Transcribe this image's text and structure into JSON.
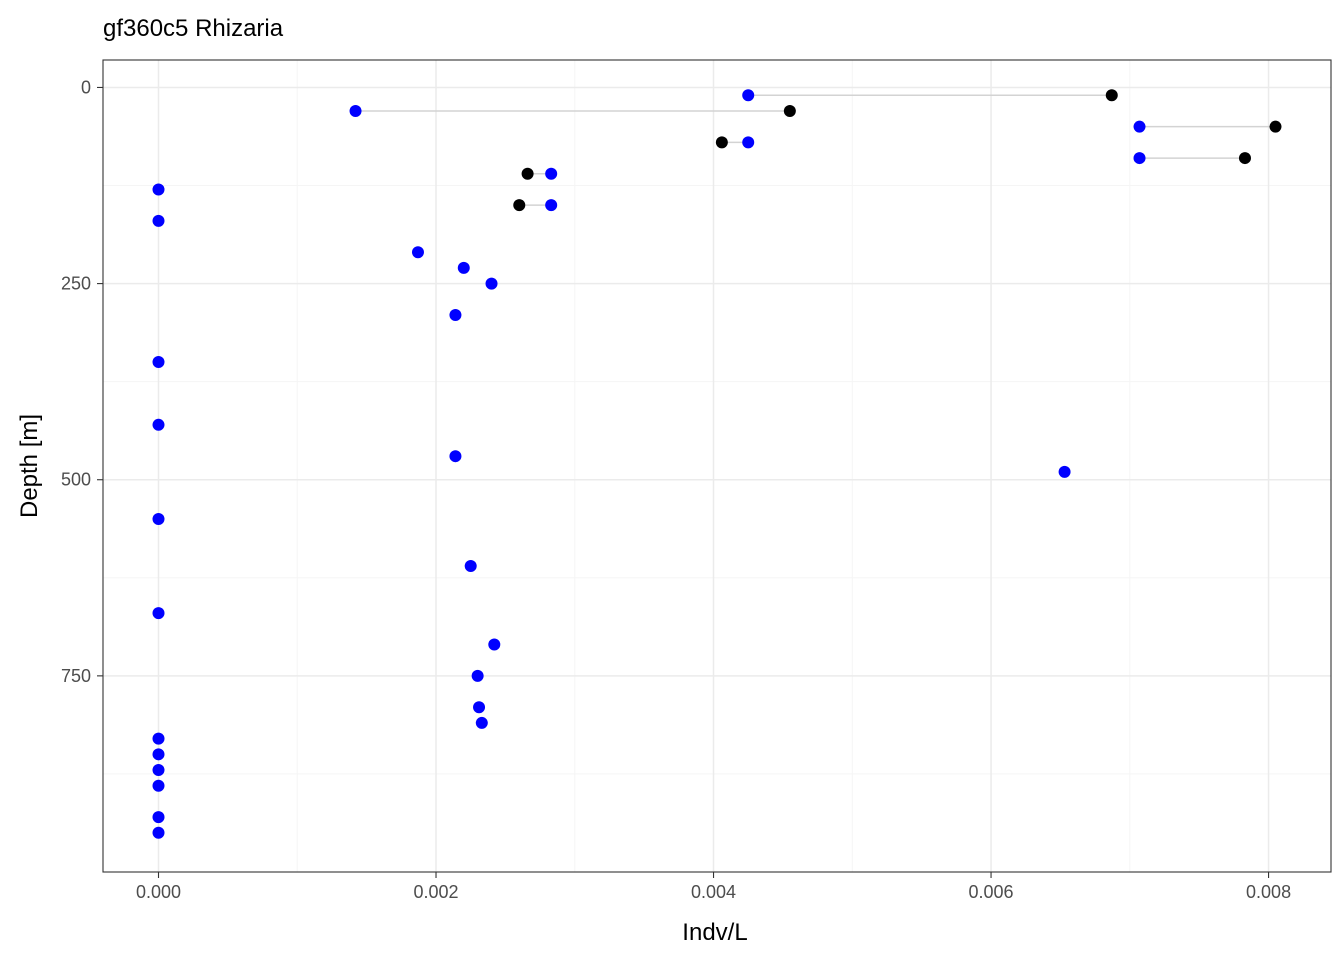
{
  "chart_data": {
    "type": "scatter",
    "title": "gf360c5 Rhizaria",
    "xlabel": "Indv/L",
    "ylabel": "Depth [m]",
    "xlim": [
      -0.0004,
      0.00845
    ],
    "ylim": [
      -35,
      1000
    ],
    "y_reversed": true,
    "x_ticks": [
      0.0,
      0.002,
      0.004,
      0.006,
      0.008
    ],
    "x_tick_labels": [
      "0.000",
      "0.002",
      "0.004",
      "0.006",
      "0.008"
    ],
    "y_ticks": [
      0,
      250,
      500,
      750
    ],
    "y_tick_labels": [
      "0",
      "250",
      "500",
      "750"
    ],
    "grid": true,
    "colors": {
      "blue_points": "#0000ff",
      "black_points": "#000000",
      "segments": "#d3d3d3",
      "grid_major": "#ebebeb",
      "grid_minor": "#f5f5f5",
      "panel_border": "#333333"
    },
    "segments": [
      {
        "x1": 0.00425,
        "x2": 0.00687,
        "y": 10
      },
      {
        "x1": 0.00142,
        "x2": 0.00455,
        "y": 30
      },
      {
        "x1": 0.00707,
        "x2": 0.00805,
        "y": 50
      },
      {
        "x1": 0.00406,
        "x2": 0.00425,
        "y": 70
      },
      {
        "x1": 0.00707,
        "x2": 0.00783,
        "y": 90
      },
      {
        "x1": 0.00266,
        "x2": 0.00283,
        "y": 110
      },
      {
        "x1": 0.0026,
        "x2": 0.00283,
        "y": 150
      }
    ],
    "series": [
      {
        "color": "black",
        "points": [
          {
            "x": 0.00687,
            "y": 10
          },
          {
            "x": 0.00455,
            "y": 30
          },
          {
            "x": 0.00805,
            "y": 50
          },
          {
            "x": 0.00406,
            "y": 70
          },
          {
            "x": 0.00783,
            "y": 90
          },
          {
            "x": 0.00266,
            "y": 110
          },
          {
            "x": 0.0026,
            "y": 150
          }
        ]
      },
      {
        "color": "blue",
        "points": [
          {
            "x": 0.00425,
            "y": 10
          },
          {
            "x": 0.00142,
            "y": 30
          },
          {
            "x": 0.00707,
            "y": 50
          },
          {
            "x": 0.00425,
            "y": 70
          },
          {
            "x": 0.00707,
            "y": 90
          },
          {
            "x": 0.00283,
            "y": 110
          },
          {
            "x": 0.0,
            "y": 130
          },
          {
            "x": 0.00283,
            "y": 150
          },
          {
            "x": 0.0,
            "y": 170
          },
          {
            "x": 0.00187,
            "y": 210
          },
          {
            "x": 0.0022,
            "y": 230
          },
          {
            "x": 0.0024,
            "y": 250
          },
          {
            "x": 0.00214,
            "y": 290
          },
          {
            "x": 0.0,
            "y": 350
          },
          {
            "x": 0.0,
            "y": 430
          },
          {
            "x": 0.00214,
            "y": 470
          },
          {
            "x": 0.00653,
            "y": 490
          },
          {
            "x": 0.0,
            "y": 550
          },
          {
            "x": 0.00225,
            "y": 610
          },
          {
            "x": 0.0,
            "y": 670
          },
          {
            "x": 0.00242,
            "y": 710
          },
          {
            "x": 0.0023,
            "y": 750
          },
          {
            "x": 0.00231,
            "y": 790
          },
          {
            "x": 0.00233,
            "y": 810
          },
          {
            "x": 0.0,
            "y": 830
          },
          {
            "x": 0.0,
            "y": 850
          },
          {
            "x": 0.0,
            "y": 870
          },
          {
            "x": 0.0,
            "y": 890
          },
          {
            "x": 0.0,
            "y": 930
          },
          {
            "x": 0.0,
            "y": 950
          }
        ]
      }
    ]
  }
}
